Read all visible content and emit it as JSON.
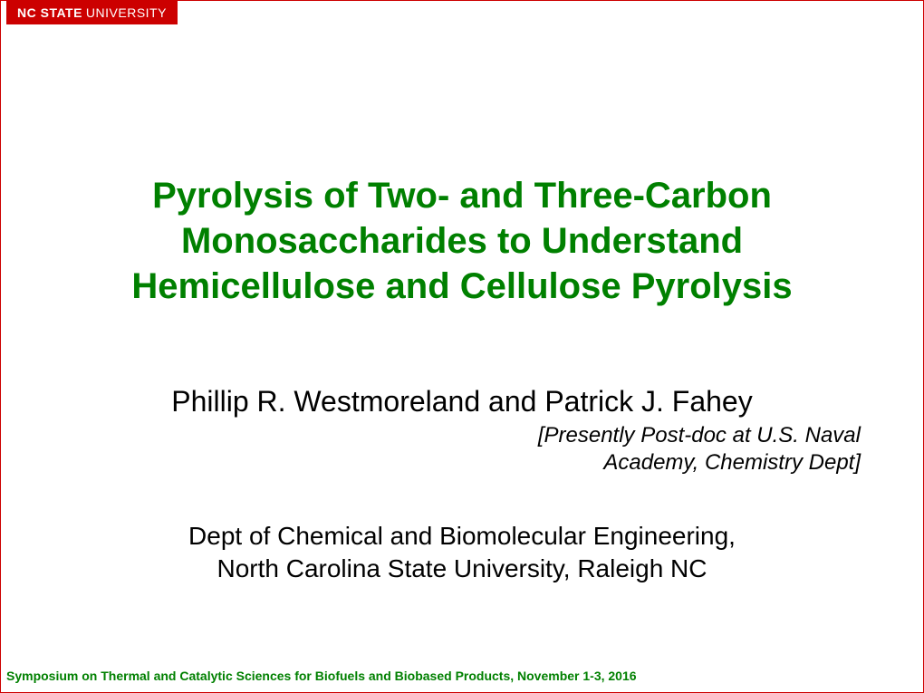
{
  "logo": {
    "bold": "NC STATE",
    "thin": "UNIVERSITY"
  },
  "title": "Pyrolysis of Two- and Three-Carbon Monosaccharides to Understand Hemicellulose and Cellulose Pyrolysis",
  "authors": "Phillip R. Westmoreland and Patrick J. Fahey",
  "affiliation_note_line1": "[Presently Post-doc at U.S. Naval",
  "affiliation_note_line2": "Academy, Chemistry Dept]",
  "dept_line1": "Dept of Chemical and Biomolecular Engineering,",
  "dept_line2": "North Carolina State University, Raleigh NC",
  "footer": "Symposium on Thermal and Catalytic Sciences for Biofuels and Biobased Products, November 1-3, 2016",
  "colors": {
    "red": "#cc0000",
    "green": "#008000",
    "black": "#000000",
    "white": "#ffffff"
  }
}
